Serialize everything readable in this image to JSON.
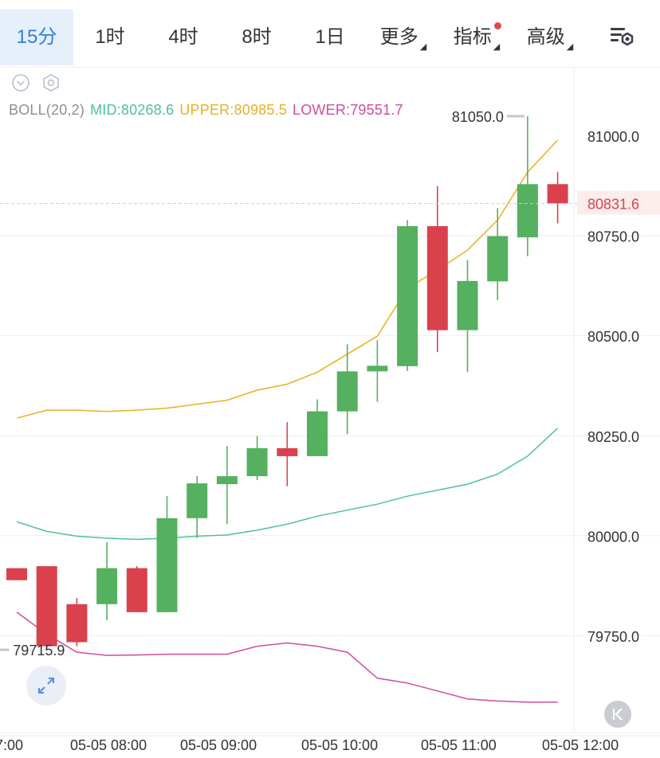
{
  "tabs": [
    {
      "label": "15分",
      "active": true
    },
    {
      "label": "1时"
    },
    {
      "label": "4时"
    },
    {
      "label": "8时"
    },
    {
      "label": "1日"
    },
    {
      "label": "更多",
      "dropdown": true
    },
    {
      "label": "指标",
      "dropdown": true,
      "badge": true
    },
    {
      "label": "高级",
      "dropdown": true
    }
  ],
  "indicator": {
    "name": "BOLL(20,2)",
    "mid": "MID:80268.6",
    "upper": "UPPER:80985.5",
    "lower": "LOWER:79551.7"
  },
  "colors": {
    "up": "#55b05f",
    "down": "#d9414d",
    "mid": "#4fc0a0",
    "upper": "#e8b020",
    "lower": "#d24aa0",
    "accent": "#2f7de1",
    "badge": "#e04b43",
    "grid": "#eceef2",
    "axis_text": "#333333",
    "current_price": "#d9414d"
  },
  "icons": {
    "collapse": "chevron-down-circle-icon",
    "settings": "hexagon-gear-icon",
    "chart_settings": "chart-settings-icon",
    "expand": "expand-arrows-icon",
    "back": "back-to-latest-icon"
  },
  "chart_data": {
    "type": "candlestick",
    "ylim": [
      79600,
      81150
    ],
    "y_ticks": [
      81000,
      80750,
      80500,
      80250,
      80000,
      79750
    ],
    "y_tick_labels": [
      "81000.0",
      "80750.0",
      "80500.0",
      "80250.0",
      "80000.0",
      "79750.0"
    ],
    "x_tick_labels": [
      "7:00",
      "05-05 08:00",
      "05-05 09:00",
      "05-05 10:00",
      "05-05 11:00",
      "05-05 12:00"
    ],
    "current_price": 80831.6,
    "current_price_label": "80831.6",
    "high_marker": {
      "value": 81050.0,
      "label": "81050.0"
    },
    "low_marker": {
      "value": 79715.9,
      "label": "79715.9"
    },
    "candles": [
      {
        "open": 79920,
        "close": 79890,
        "high": 79920,
        "low": 79890
      },
      {
        "open": 79925,
        "close": 79725,
        "high": 79925,
        "low": 79716
      },
      {
        "open": 79830,
        "close": 79735,
        "high": 79845,
        "low": 79725
      },
      {
        "open": 79830,
        "close": 79920,
        "high": 79985,
        "low": 79790
      },
      {
        "open": 79920,
        "close": 79810,
        "high": 79925,
        "low": 79810
      },
      {
        "open": 79810,
        "close": 80045,
        "high": 80100,
        "low": 79810
      },
      {
        "open": 80045,
        "close": 80132,
        "high": 80150,
        "low": 79995
      },
      {
        "open": 80130,
        "close": 80150,
        "high": 80225,
        "low": 80030
      },
      {
        "open": 80150,
        "close": 80220,
        "high": 80250,
        "low": 80140
      },
      {
        "open": 80220,
        "close": 80200,
        "high": 80285,
        "low": 80125
      },
      {
        "open": 80200,
        "close": 80312,
        "high": 80342,
        "low": 80200
      },
      {
        "open": 80312,
        "close": 80412,
        "high": 80480,
        "low": 80255
      },
      {
        "open": 80412,
        "close": 80426,
        "high": 80490,
        "low": 80336
      },
      {
        "open": 80425,
        "close": 80775,
        "high": 80790,
        "low": 80413
      },
      {
        "open": 80775,
        "close": 80515,
        "high": 80875,
        "low": 80460
      },
      {
        "open": 80515,
        "close": 80638,
        "high": 80690,
        "low": 80410
      },
      {
        "open": 80637,
        "close": 80750,
        "high": 80820,
        "low": 80590
      },
      {
        "open": 80747,
        "close": 80880,
        "high": 81050,
        "low": 80700
      },
      {
        "open": 80880,
        "close": 80832,
        "high": 80910,
        "low": 80782
      }
    ],
    "series": [
      {
        "name": "UPPER",
        "values": [
          80295,
          80315,
          80315,
          80312,
          80315,
          80320,
          80330,
          80340,
          80365,
          80380,
          80410,
          80455,
          80500,
          80620,
          80665,
          80715,
          80790,
          80910,
          80990
        ]
      },
      {
        "name": "MID",
        "values": [
          80036,
          80012,
          80000,
          79995,
          79992,
          79995,
          80000,
          80003,
          80015,
          80030,
          80050,
          80065,
          80080,
          80100,
          80115,
          80130,
          80155,
          80200,
          80270
        ]
      },
      {
        "name": "LOWER",
        "values": [
          79810,
          79755,
          79710,
          79702,
          79703,
          79705,
          79705,
          79705,
          79725,
          79733,
          79725,
          79710,
          79645,
          79633,
          79613,
          79593,
          79588,
          79585,
          79585
        ]
      }
    ]
  }
}
